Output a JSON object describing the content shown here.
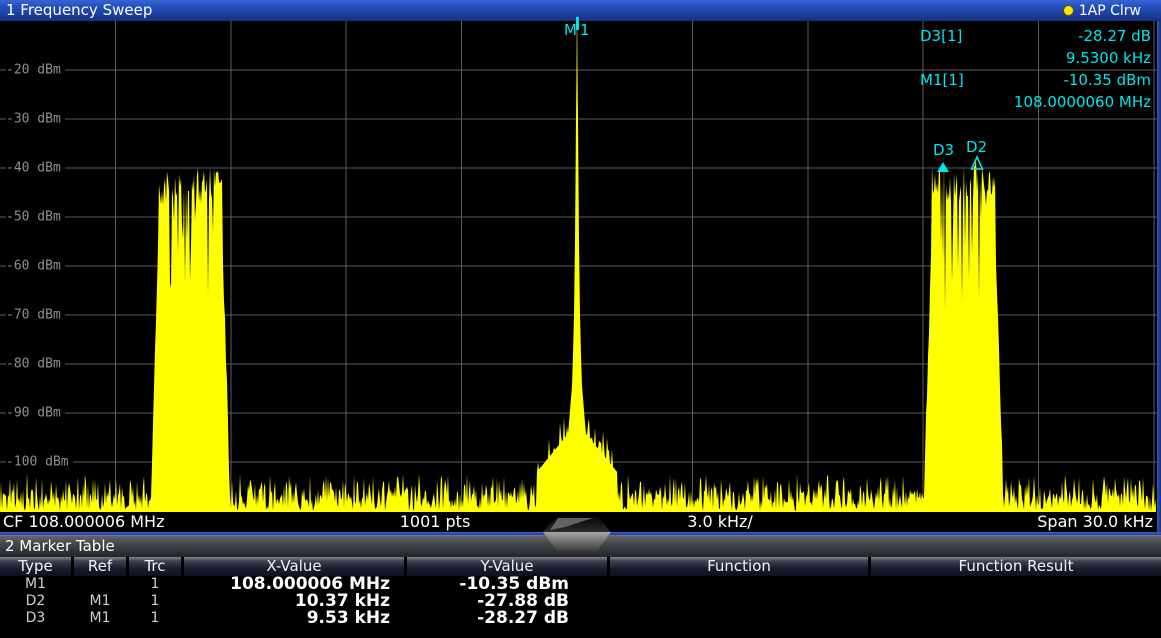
{
  "window": {
    "title": "1 Frequency Sweep",
    "trace_label": "1AP Clrw"
  },
  "readout": {
    "rows": [
      {
        "label": "D3[1]",
        "value": "-28.27 dB"
      },
      {
        "label": "",
        "value": "9.5300 kHz"
      },
      {
        "label": "M1[1]",
        "value": "-10.35 dBm"
      },
      {
        "label": "",
        "value": "108.0000060 MHz"
      }
    ]
  },
  "axis": {
    "y_ticks": [
      "-20 dBm",
      "-30 dBm",
      "-40 dBm",
      "-50 dBm",
      "-60 dBm",
      "-70 dBm",
      "-80 dBm",
      "-90 dBm",
      "-100 dBm"
    ]
  },
  "markers": {
    "m1": "M1",
    "d2": "D2",
    "d3": "D3"
  },
  "footer": {
    "cf": "CF 108.000006 MHz",
    "pts": "1001 pts",
    "scale": "3.0 kHz/",
    "span": "Span 30.0 kHz"
  },
  "marker_table": {
    "title": "2 Marker Table",
    "headers": [
      "Type",
      "Ref",
      "Trc",
      "X-Value",
      "Y-Value",
      "Function",
      "Function Result"
    ],
    "rows": [
      [
        "M1",
        "",
        "1",
        "108.000006 MHz",
        "-10.35 dBm",
        "",
        ""
      ],
      [
        "D2",
        "M1",
        "1",
        "10.37 kHz",
        "-27.88 dB",
        "",
        ""
      ],
      [
        "D3",
        "M1",
        "1",
        "9.53 kHz",
        "-28.27 dB",
        "",
        ""
      ]
    ]
  },
  "colors": {
    "trace": "#ffff00",
    "marker": "#00e5ee",
    "grid": "#5c5c5c",
    "titlebar_blue": "#2350c0",
    "trace_dot": "#ffe600"
  },
  "chart_data": {
    "type": "area",
    "title": "Frequency Sweep spectrum",
    "center_frequency": "108.000006 MHz",
    "span_khz": 30,
    "points": 1001,
    "khz_per_div": 3.0,
    "ylim_dbm": [
      -110,
      -10
    ],
    "db_per_div": 10,
    "y_gridlines_dbm": [
      -20,
      -30,
      -40,
      -50,
      -60,
      -70,
      -80,
      -90,
      -100
    ],
    "carrier": {
      "offset_khz": 0,
      "level_dbm": -10.35
    },
    "sidebands": [
      {
        "offset_khz": -10.05,
        "width_khz": 1.65,
        "top_level_dbm": -40
      },
      {
        "offset_khz": 10.05,
        "width_khz": 1.65,
        "top_level_dbm": -40
      }
    ],
    "noise_floor_dbm": -106,
    "marker_points": [
      {
        "name": "M1",
        "x": "108.000006 MHz",
        "y": "-10.35 dBm",
        "offset_khz": 0
      },
      {
        "name": "D2",
        "x": "10.37 kHz",
        "y": "-27.88 dB",
        "offset_khz": 10.37
      },
      {
        "name": "D3",
        "x": "9.53 kHz",
        "y": "-28.27 dB",
        "offset_khz": 9.53
      }
    ]
  }
}
